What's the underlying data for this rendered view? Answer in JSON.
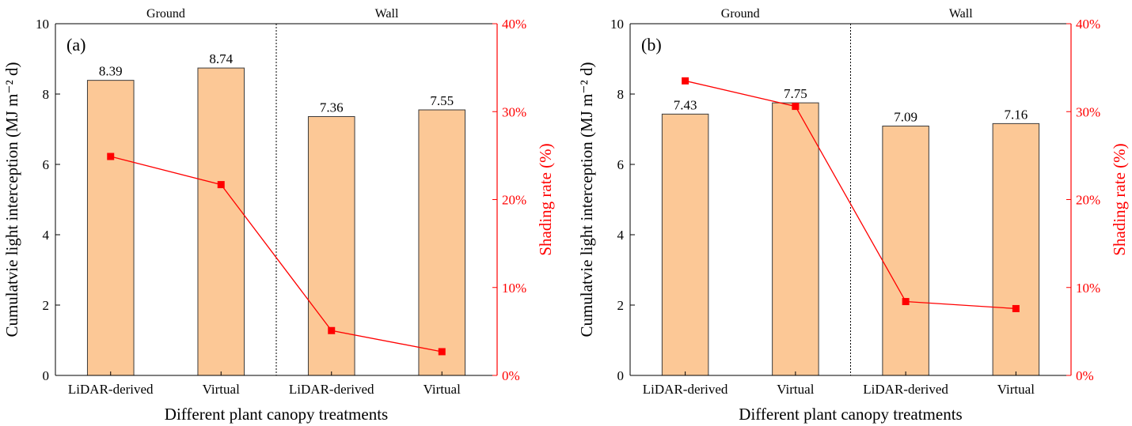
{
  "chart_data": [
    {
      "type": "bar+line",
      "panel_label": "(a)",
      "groups": [
        "Ground",
        "Wall"
      ],
      "categories": [
        "LiDAR-derived",
        "Virtual",
        "LiDAR-derived",
        "Virtual"
      ],
      "series": [
        {
          "name": "",
          "type": "bar",
          "axis": "left",
          "values": [
            8.39,
            8.74,
            7.36,
            7.55
          ],
          "value_labels": [
            "8.39",
            "8.74",
            "7.36",
            "7.55"
          ]
        },
        {
          "name": "",
          "type": "line",
          "axis": "right",
          "values": [
            24.9,
            21.7,
            5.1,
            2.7
          ]
        }
      ],
      "xlabel": "Different plant canopy treatments",
      "ylabel": "Cumulatvie light interception (MJ m⁻² d)",
      "y2label": "Shading rate (%)",
      "ylim": [
        0,
        10
      ],
      "yticks": [
        "0",
        "2",
        "4",
        "6",
        "8",
        "10"
      ],
      "y2lim": [
        0,
        40
      ],
      "y2ticks": [
        "0%",
        "10%",
        "20%",
        "30%",
        "40%"
      ],
      "grid": false,
      "colors": {
        "bar_fill": "#fcc896",
        "bar_stroke": "#3a3a3a",
        "line": "#ff0000",
        "y2_axis": "#ff0000"
      }
    },
    {
      "type": "bar+line",
      "panel_label": "(b)",
      "groups": [
        "Ground",
        "Wall"
      ],
      "categories": [
        "LiDAR-derived",
        "Virtual",
        "LiDAR-derived",
        "Virtual"
      ],
      "series": [
        {
          "name": "",
          "type": "bar",
          "axis": "left",
          "values": [
            7.43,
            7.75,
            7.09,
            7.16
          ],
          "value_labels": [
            "7.43",
            "7.75",
            "7.09",
            "7.16"
          ]
        },
        {
          "name": "",
          "type": "line",
          "axis": "right",
          "values": [
            33.5,
            30.6,
            8.4,
            7.6
          ]
        }
      ],
      "xlabel": "Different plant canopy treatments",
      "ylabel": "Cumulatvie light interception (MJ m⁻² d)",
      "y2label": "Shading rate (%)",
      "ylim": [
        0,
        10
      ],
      "yticks": [
        "0",
        "2",
        "4",
        "6",
        "8",
        "10"
      ],
      "y2lim": [
        0,
        40
      ],
      "y2ticks": [
        "0%",
        "10%",
        "20%",
        "30%",
        "40%"
      ],
      "grid": false,
      "colors": {
        "bar_fill": "#fcc896",
        "bar_stroke": "#3a3a3a",
        "line": "#ff0000",
        "y2_axis": "#ff0000"
      }
    }
  ]
}
